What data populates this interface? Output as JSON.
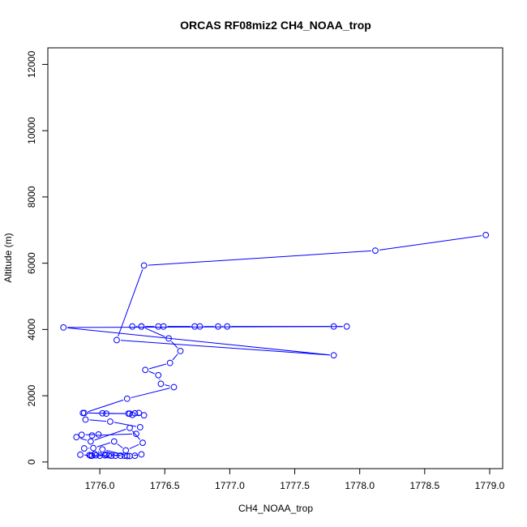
{
  "chart_data": {
    "type": "line",
    "title": "ORCAS RF08miz2 CH4_NOAA_trop",
    "xlabel": "CH4_NOAA_trop",
    "ylabel": "Altitude (m)",
    "xlim": [
      1775.6,
      1779.1
    ],
    "ylim": [
      -200,
      12500
    ],
    "xticks": [
      1776.0,
      1776.5,
      1777.0,
      1777.5,
      1778.0,
      1778.5,
      1779.0
    ],
    "xtick_labels": [
      "1776.0",
      "1776.5",
      "1777.0",
      "1777.5",
      "1778.0",
      "1778.5",
      "1779.0"
    ],
    "yticks": [
      0,
      2000,
      4000,
      6000,
      8000,
      10000,
      12000
    ],
    "ytick_labels": [
      "0",
      "2000",
      "4000",
      "6000",
      "8000",
      "10000",
      "12000"
    ],
    "grid": false,
    "series_color": "#0000ff",
    "series": [
      {
        "markers": "open-circle",
        "x": [
          1778.97,
          1778.12,
          1776.34,
          1776.13,
          1777.8,
          1775.72,
          1777.9,
          1777.8,
          1776.98,
          1776.91,
          1776.77,
          1776.73,
          1776.49,
          1776.45,
          1776.32,
          1776.25,
          1776.32,
          1776.53,
          1776.62,
          1776.54,
          1776.35,
          1776.45,
          1776.47,
          1776.57,
          1776.21,
          1775.88,
          1776.02,
          1776.05,
          1776.23,
          1776.27,
          1776.3,
          1776.34,
          1776.25,
          1776.22,
          1775.87,
          1775.89,
          1776.08,
          1776.31,
          1776.28,
          1775.94,
          1775.99,
          1775.86,
          1775.82,
          1775.93,
          1776.23,
          1776.33,
          1776.2,
          1776.11,
          1775.95,
          1775.88,
          1775.85,
          1775.94,
          1776.09,
          1776.19,
          1776.05,
          1775.97,
          1775.93,
          1775.92,
          1776.0,
          1776.07,
          1776.12,
          1776.16,
          1776.21,
          1776.27,
          1776.32,
          1776.23,
          1776.02,
          1775.96,
          1776.04
        ],
        "y": [
          6850,
          6380,
          5930,
          3680,
          3220,
          4060,
          4090,
          4090,
          4090,
          4090,
          4090,
          4090,
          4090,
          4090,
          4090,
          4090,
          4090,
          3730,
          3350,
          2990,
          2780,
          2620,
          2360,
          2260,
          1910,
          1480,
          1470,
          1460,
          1460,
          1470,
          1480,
          1410,
          1420,
          1460,
          1480,
          1280,
          1220,
          1050,
          850,
          800,
          830,
          820,
          750,
          620,
          1030,
          580,
          350,
          620,
          420,
          410,
          220,
          190,
          190,
          190,
          220,
          200,
          190,
          210,
          190,
          200,
          190,
          190,
          180,
          190,
          230,
          180,
          380,
          240,
          200
        ]
      }
    ]
  }
}
